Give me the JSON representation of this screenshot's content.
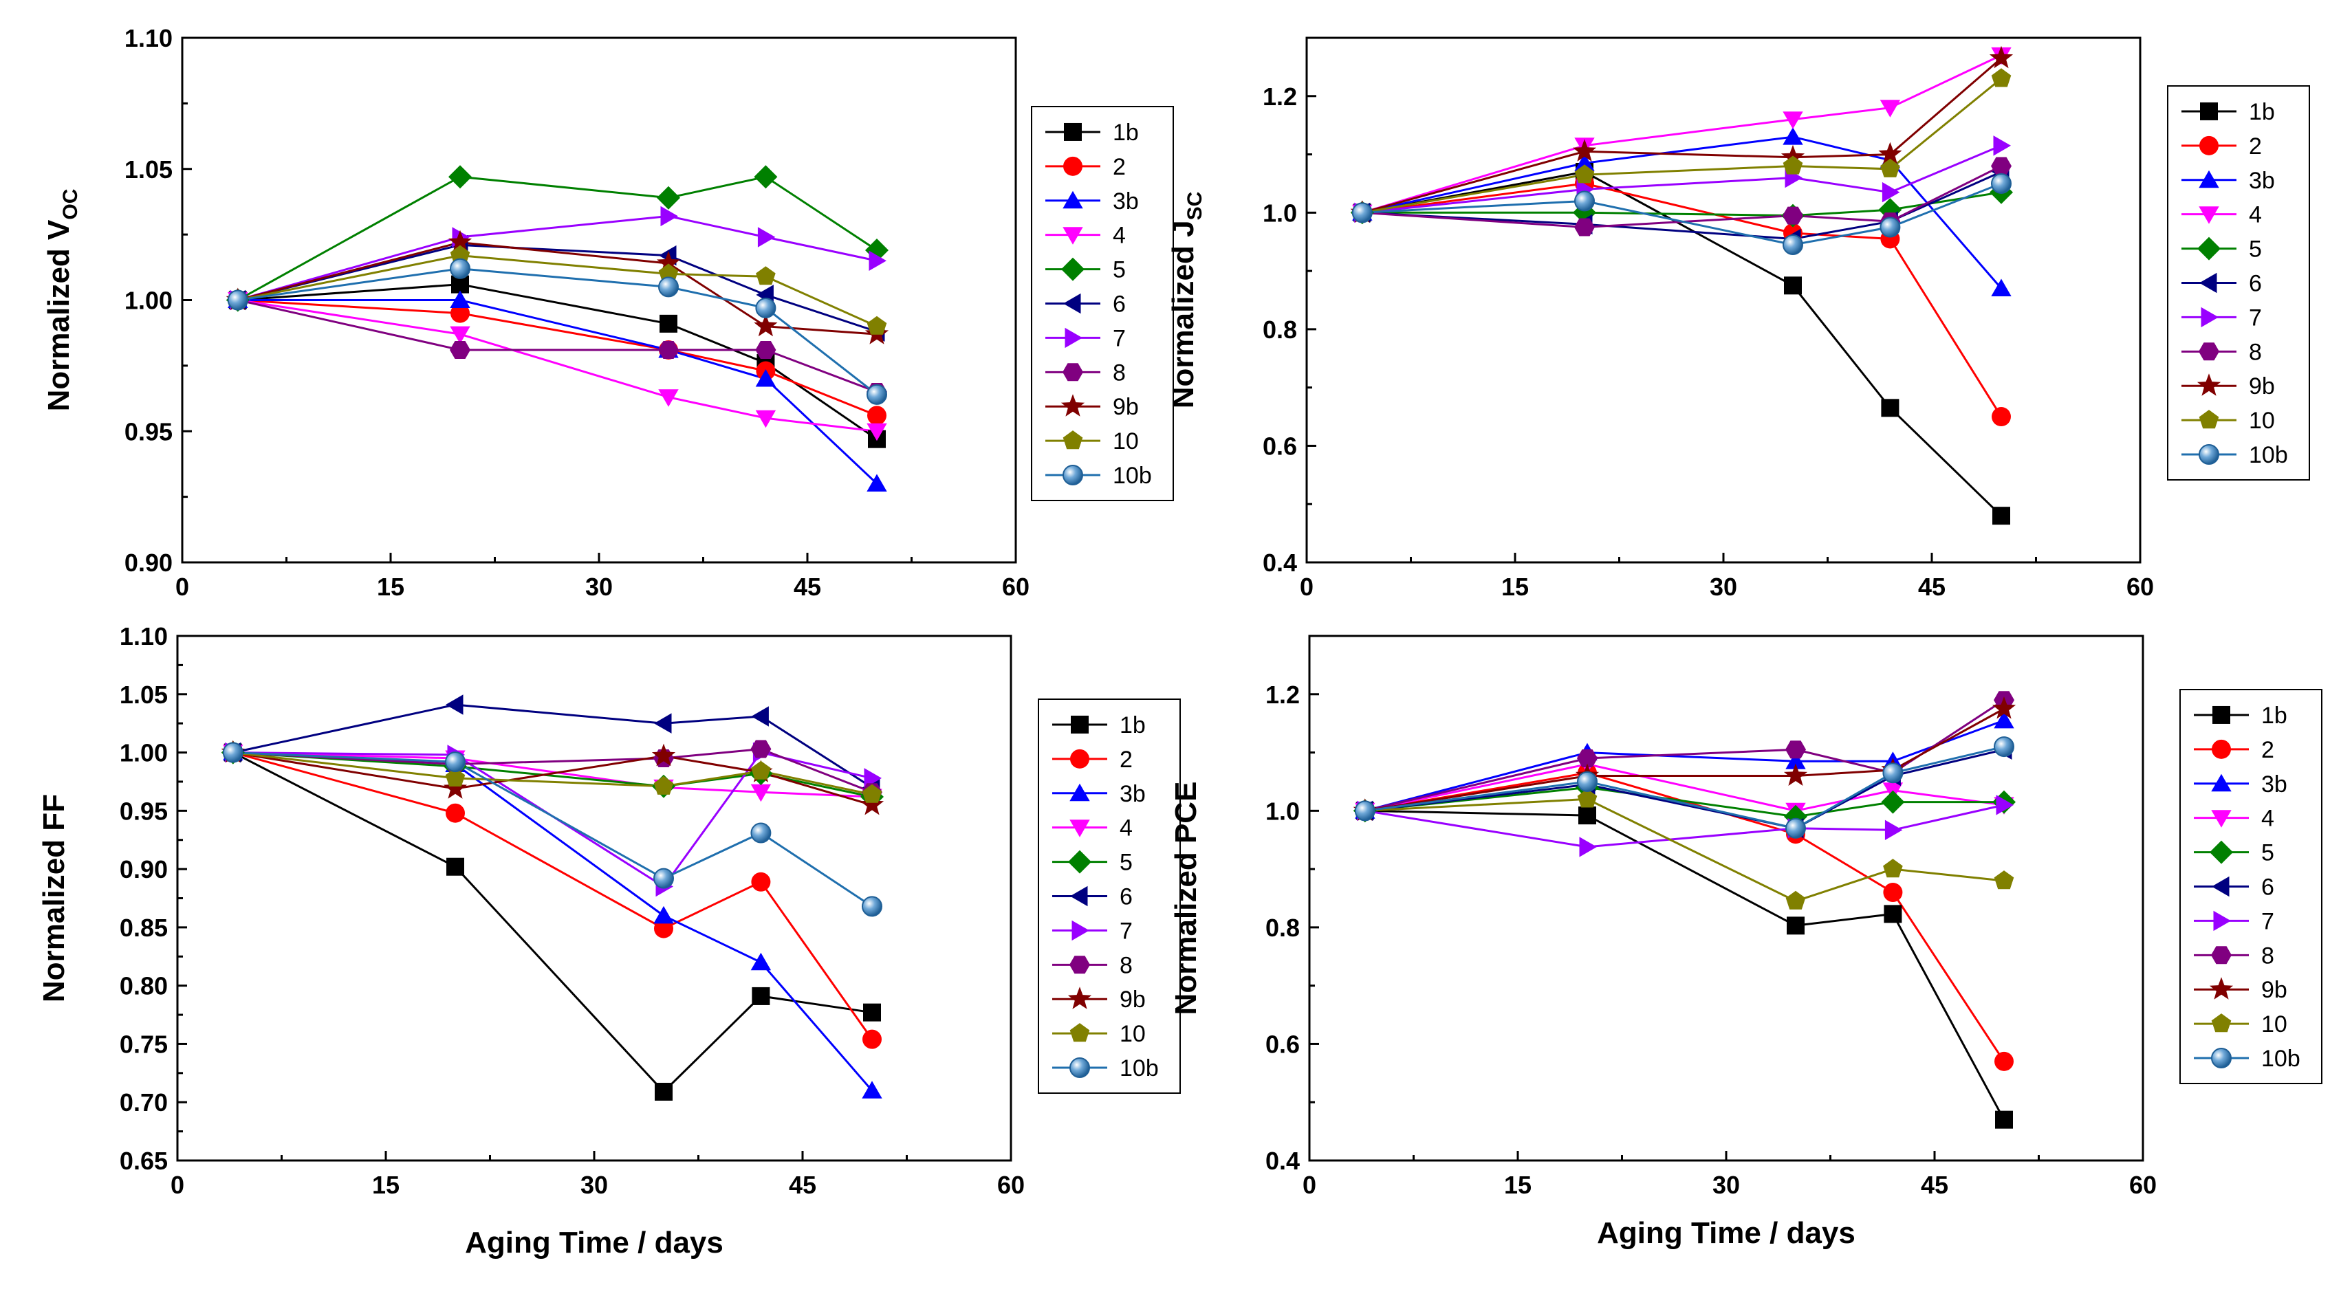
{
  "chart_data": [
    {
      "id": "voc",
      "type": "line",
      "ylabel": "Normalized V",
      "ylabel_sub": "OC",
      "xlabel": "",
      "xlim": [
        0,
        60
      ],
      "ylim": [
        0.9,
        1.1
      ],
      "xticks": [
        "0",
        "15",
        "30",
        "45",
        "60"
      ],
      "yticks": [
        "0.90",
        "0.95",
        "1.00",
        "1.05",
        "1.10"
      ],
      "x": [
        4,
        20,
        35,
        42,
        50
      ],
      "series": [
        {
          "name": "1b",
          "values": [
            1.0,
            1.006,
            0.991,
            0.976,
            0.947
          ]
        },
        {
          "name": "2",
          "values": [
            1.0,
            0.995,
            0.981,
            0.973,
            0.956
          ]
        },
        {
          "name": "3b",
          "values": [
            1.0,
            1.0,
            0.981,
            0.97,
            0.93
          ]
        },
        {
          "name": "4",
          "values": [
            1.0,
            0.987,
            0.963,
            0.955,
            0.95
          ]
        },
        {
          "name": "5",
          "values": [
            1.0,
            1.047,
            1.039,
            1.047,
            1.019
          ]
        },
        {
          "name": "6",
          "values": [
            1.0,
            1.021,
            1.017,
            1.002,
            0.988
          ]
        },
        {
          "name": "7",
          "values": [
            1.0,
            1.024,
            1.032,
            1.024,
            1.015
          ]
        },
        {
          "name": "8",
          "values": [
            1.0,
            0.981,
            0.981,
            0.981,
            0.965
          ]
        },
        {
          "name": "9b",
          "values": [
            1.0,
            1.022,
            1.014,
            0.99,
            0.987
          ]
        },
        {
          "name": "10",
          "values": [
            1.0,
            1.017,
            1.01,
            1.009,
            0.99
          ]
        },
        {
          "name": "10b",
          "values": [
            1.0,
            1.012,
            1.005,
            0.997,
            0.964
          ]
        }
      ]
    },
    {
      "id": "jsc",
      "type": "line",
      "ylabel": "Normalized J",
      "ylabel_sub": "SC",
      "xlabel": "",
      "xlim": [
        0,
        60
      ],
      "ylim": [
        0.4,
        1.3
      ],
      "xticks": [
        "0",
        "15",
        "30",
        "45",
        "60"
      ],
      "yticks": [
        "0.4",
        "0.6",
        "0.8",
        "1.0",
        "1.2"
      ],
      "x": [
        4,
        20,
        35,
        42,
        50
      ],
      "series": [
        {
          "name": "1b",
          "values": [
            1.0,
            1.07,
            0.875,
            0.665,
            0.48
          ]
        },
        {
          "name": "2",
          "values": [
            1.0,
            1.05,
            0.965,
            0.955,
            0.65
          ]
        },
        {
          "name": "3b",
          "values": [
            1.0,
            1.085,
            1.13,
            1.09,
            0.87
          ]
        },
        {
          "name": "4",
          "values": [
            1.0,
            1.115,
            1.16,
            1.18,
            1.27
          ]
        },
        {
          "name": "5",
          "values": [
            1.0,
            1.0,
            0.995,
            1.005,
            1.035
          ]
        },
        {
          "name": "6",
          "values": [
            1.0,
            0.98,
            0.955,
            0.985,
            1.07
          ]
        },
        {
          "name": "7",
          "values": [
            1.0,
            1.04,
            1.06,
            1.035,
            1.115
          ]
        },
        {
          "name": "8",
          "values": [
            1.0,
            0.975,
            0.995,
            0.985,
            1.08
          ]
        },
        {
          "name": "9b",
          "values": [
            1.0,
            1.105,
            1.095,
            1.1,
            1.265
          ]
        },
        {
          "name": "10",
          "values": [
            1.0,
            1.065,
            1.08,
            1.075,
            1.23
          ]
        },
        {
          "name": "10b",
          "values": [
            1.0,
            1.02,
            0.945,
            0.975,
            1.05
          ]
        }
      ]
    },
    {
      "id": "ff",
      "type": "line",
      "ylabel": "Normalized FF",
      "ylabel_sub": "",
      "xlabel": "Aging Time / days",
      "xlim": [
        0,
        60
      ],
      "ylim": [
        0.65,
        1.1
      ],
      "xticks": [
        "0",
        "15",
        "30",
        "45",
        "60"
      ],
      "yticks": [
        "0.65",
        "0.70",
        "0.75",
        "0.80",
        "0.85",
        "0.90",
        "0.95",
        "1.00",
        "1.05",
        "1.10"
      ],
      "x": [
        4,
        20,
        35,
        42,
        50
      ],
      "series": [
        {
          "name": "1b",
          "values": [
            1.0,
            0.902,
            0.709,
            0.791,
            0.777
          ]
        },
        {
          "name": "2",
          "values": [
            1.0,
            0.948,
            0.849,
            0.889,
            0.754
          ]
        },
        {
          "name": "3b",
          "values": [
            1.0,
            0.99,
            0.86,
            0.82,
            0.71
          ]
        },
        {
          "name": "4",
          "values": [
            1.0,
            0.995,
            0.97,
            0.966,
            0.962
          ]
        },
        {
          "name": "5",
          "values": [
            1.0,
            0.988,
            0.971,
            0.982,
            0.962
          ]
        },
        {
          "name": "6",
          "values": [
            1.0,
            1.041,
            1.025,
            1.031,
            0.97
          ]
        },
        {
          "name": "7",
          "values": [
            1.0,
            0.998,
            0.885,
            1.0,
            0.978
          ]
        },
        {
          "name": "8",
          "values": [
            1.0,
            0.99,
            0.995,
            1.003,
            0.966
          ]
        },
        {
          "name": "9b",
          "values": [
            1.0,
            0.969,
            0.997,
            0.983,
            0.955
          ]
        },
        {
          "name": "10",
          "values": [
            1.0,
            0.978,
            0.971,
            0.984,
            0.964
          ]
        },
        {
          "name": "10b",
          "values": [
            1.0,
            0.992,
            0.892,
            0.931,
            0.868
          ]
        }
      ]
    },
    {
      "id": "pce",
      "type": "line",
      "ylabel": "Normalized PCE",
      "ylabel_sub": "",
      "xlabel": "Aging Time / days",
      "xlim": [
        0,
        60
      ],
      "ylim": [
        0.4,
        1.3
      ],
      "xticks": [
        "0",
        "15",
        "30",
        "45",
        "60"
      ],
      "yticks": [
        "0.4",
        "0.6",
        "0.8",
        "1.0",
        "1.2"
      ],
      "x": [
        4,
        20,
        35,
        42,
        50
      ],
      "series": [
        {
          "name": "1b",
          "values": [
            1.0,
            0.992,
            0.803,
            0.823,
            0.47
          ]
        },
        {
          "name": "2",
          "values": [
            1.0,
            1.065,
            0.96,
            0.86,
            0.57
          ]
        },
        {
          "name": "3b",
          "values": [
            1.0,
            1.1,
            1.085,
            1.085,
            1.155
          ]
        },
        {
          "name": "4",
          "values": [
            1.0,
            1.08,
            1.0,
            1.035,
            1.01
          ]
        },
        {
          "name": "5",
          "values": [
            1.0,
            1.04,
            0.99,
            1.015,
            1.015
          ]
        },
        {
          "name": "6",
          "values": [
            1.0,
            1.045,
            0.97,
            1.06,
            1.105
          ]
        },
        {
          "name": "7",
          "values": [
            1.0,
            0.938,
            0.97,
            0.967,
            1.01
          ]
        },
        {
          "name": "8",
          "values": [
            1.0,
            1.09,
            1.105,
            1.065,
            1.19
          ]
        },
        {
          "name": "9b",
          "values": [
            1.0,
            1.06,
            1.06,
            1.07,
            1.175
          ]
        },
        {
          "name": "10",
          "values": [
            1.0,
            1.02,
            0.845,
            0.9,
            0.88
          ]
        },
        {
          "name": "10b",
          "values": [
            1.0,
            1.05,
            0.97,
            1.065,
            1.11
          ]
        }
      ]
    }
  ],
  "series_styles": [
    {
      "name": "1b",
      "color": "#000000",
      "marker": "square"
    },
    {
      "name": "2",
      "color": "#ff0000",
      "marker": "circle"
    },
    {
      "name": "3b",
      "color": "#0000ff",
      "marker": "triangle-up"
    },
    {
      "name": "4",
      "color": "#ff00ff",
      "marker": "triangle-down"
    },
    {
      "name": "5",
      "color": "#008000",
      "marker": "diamond"
    },
    {
      "name": "6",
      "color": "#000080",
      "marker": "triangle-left"
    },
    {
      "name": "7",
      "color": "#9900ff",
      "marker": "triangle-right"
    },
    {
      "name": "8",
      "color": "#800080",
      "marker": "hexagon"
    },
    {
      "name": "9b",
      "color": "#800000",
      "marker": "star"
    },
    {
      "name": "10",
      "color": "#808000",
      "marker": "pentagon"
    },
    {
      "name": "10b",
      "color": "#1f6fae",
      "marker": "sphere"
    }
  ]
}
